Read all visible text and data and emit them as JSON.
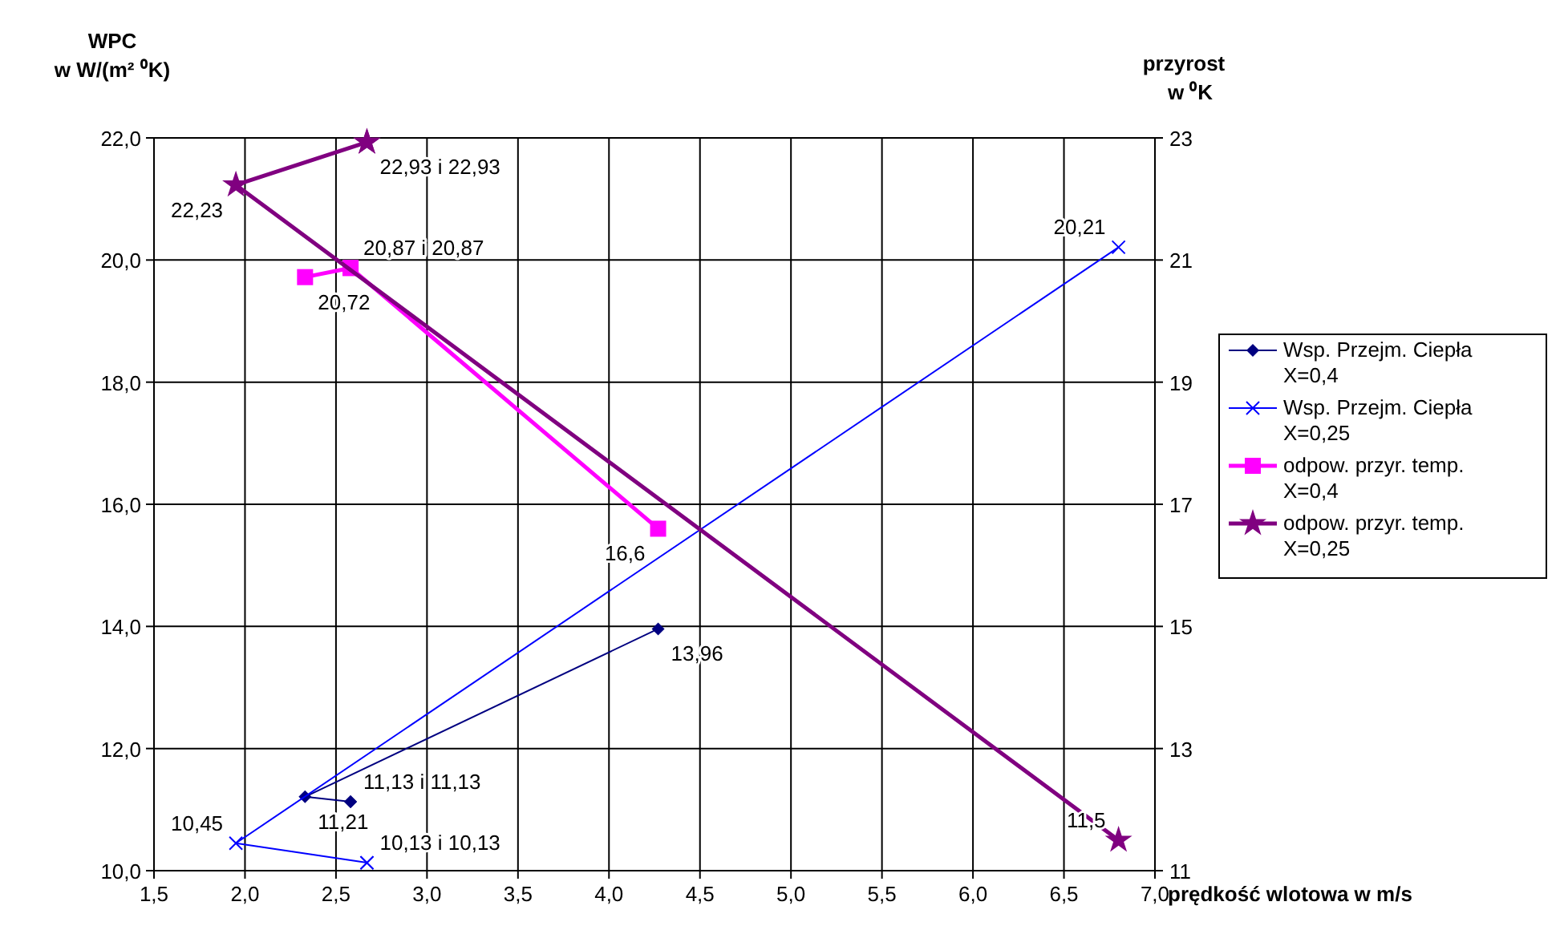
{
  "chart_data": {
    "type": "line",
    "xlabel": "prędkość wlotowa w m/s",
    "ylabel": "WPC w W/(m² ⁰K)",
    "y2label": "przyrost w ⁰K",
    "xlim": [
      1.5,
      7.0
    ],
    "xticks": [
      {
        "value": 1.5,
        "label": "1,5"
      },
      {
        "value": 2.0,
        "label": "2,0"
      },
      {
        "value": 2.5,
        "label": "2,5"
      },
      {
        "value": 3.0,
        "label": "3,0"
      },
      {
        "value": 3.5,
        "label": "3,5"
      },
      {
        "value": 4.0,
        "label": "4,0"
      },
      {
        "value": 4.5,
        "label": "4,5"
      },
      {
        "value": 5.0,
        "label": "5,0"
      },
      {
        "value": 5.5,
        "label": "5,5"
      },
      {
        "value": 6.0,
        "label": "6,0"
      },
      {
        "value": 6.5,
        "label": "6,5"
      },
      {
        "value": 7.0,
        "label": "7,0"
      }
    ],
    "ylim": [
      10,
      22
    ],
    "yticks": [
      {
        "value": 10,
        "label": "10,0"
      },
      {
        "value": 12,
        "label": "12,0"
      },
      {
        "value": 14,
        "label": "14,0"
      },
      {
        "value": 16,
        "label": "16,0"
      },
      {
        "value": 18,
        "label": "18,0"
      },
      {
        "value": 20,
        "label": "20,0"
      },
      {
        "value": 22,
        "label": "22,0"
      }
    ],
    "y2lim": [
      11,
      23
    ],
    "y2ticks": [
      11,
      13,
      15,
      17,
      19,
      21,
      23
    ],
    "grid": true,
    "legend": "right",
    "series": [
      {
        "name": "Wsp. Przejm. Ciepła X=0,4",
        "color": "#000080",
        "marker": "diamond",
        "x": [
          4.27,
          2.33,
          2.58,
          2.58
        ],
        "values": [
          13.96,
          11.21,
          11.13,
          11.13
        ],
        "value_labels": [
          "13,96",
          "11,21",
          "11,13 i 11,13",
          null
        ]
      },
      {
        "name": "Wsp. Przejm. Ciepła X=0,25",
        "color": "#0000ff",
        "marker": "cross",
        "x": [
          6.8,
          1.95,
          2.67,
          2.67
        ],
        "values": [
          20.21,
          10.45,
          10.13,
          10.13
        ],
        "value_labels": [
          "20,21",
          "10,45",
          "10,13 i 10,13",
          null
        ]
      },
      {
        "name": "odpow. przyr. temp. X=0,4",
        "color": "#ff00ff",
        "marker": "square",
        "axis": "y2",
        "x": [
          2.33,
          2.58,
          2.58,
          4.27
        ],
        "values": [
          20.72,
          20.87,
          20.87,
          16.6
        ],
        "value_labels": [
          "20,72",
          "20,87 i 20,87",
          null,
          "16,6"
        ]
      },
      {
        "name": "odpow. przyr. temp. X=0,25",
        "color": "#800080",
        "marker": "star",
        "axis": "y2",
        "x": [
          2.67,
          2.67,
          1.95,
          6.8
        ],
        "values": [
          22.93,
          22.93,
          22.23,
          11.5
        ],
        "value_labels": [
          "22,93 i 22,93",
          null,
          "22,23",
          "11,5"
        ]
      }
    ]
  }
}
